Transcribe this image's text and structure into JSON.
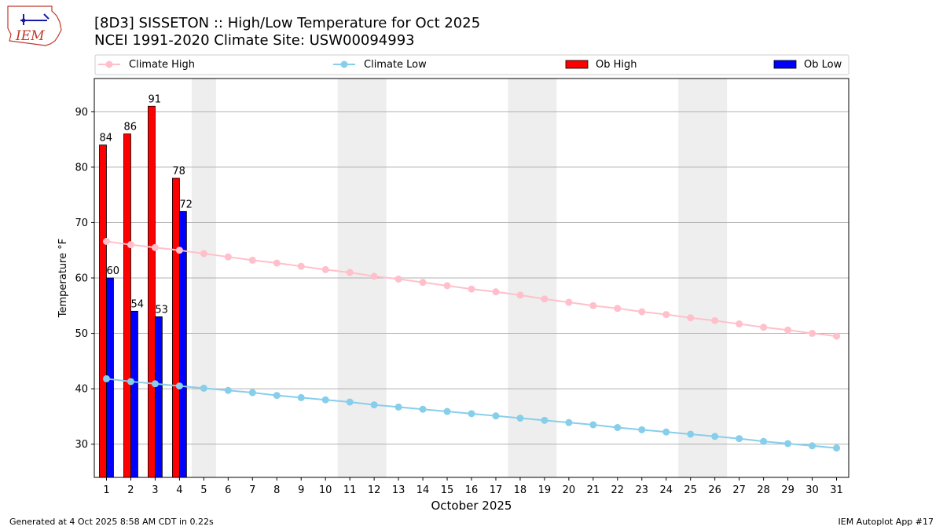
{
  "header": {
    "title_line1": "[8D3] SISSETON :: High/Low Temperature for Oct 2025",
    "title_line2": "NCEI 1991-2020 Climate Site: USW00094993"
  },
  "logo": {
    "text": "IEM",
    "colors": {
      "outline": "#c0392b",
      "text": "#c0392b",
      "symbol": "#1a1aaa"
    }
  },
  "footer": {
    "left": "Generated at 4 Oct 2025 8:58 AM CDT in 0.22s",
    "right": "IEM Autoplot App #17"
  },
  "chart_data": {
    "type": "bar",
    "title": "[8D3] SISSETON :: High/Low Temperature for Oct 2025",
    "subtitle": "NCEI 1991-2020 Climate Site: USW00094993",
    "xlabel": "October 2025",
    "ylabel": "Temperature °F",
    "ylim": [
      24,
      96
    ],
    "xlim": [
      0.5,
      31.5
    ],
    "yticks": [
      30,
      40,
      50,
      60,
      70,
      80,
      90
    ],
    "x": [
      1,
      2,
      3,
      4,
      5,
      6,
      7,
      8,
      9,
      10,
      11,
      12,
      13,
      14,
      15,
      16,
      17,
      18,
      19,
      20,
      21,
      22,
      23,
      24,
      25,
      26,
      27,
      28,
      29,
      30,
      31
    ],
    "grid": "y",
    "legend_position": "top",
    "weekend_shading": [
      [
        4.5,
        5.5
      ],
      [
        10.5,
        12.5
      ],
      [
        17.5,
        19.5
      ],
      [
        24.5,
        26.5
      ]
    ],
    "series": [
      {
        "name": "Climate High",
        "kind": "line",
        "color": "#ffc0cb",
        "values": [
          66.6,
          66.0,
          65.5,
          65.0,
          64.4,
          63.8,
          63.2,
          62.7,
          62.1,
          61.5,
          61.0,
          60.3,
          59.8,
          59.2,
          58.6,
          58.0,
          57.5,
          56.9,
          56.2,
          55.6,
          55.0,
          54.5,
          53.9,
          53.4,
          52.8,
          52.3,
          51.7,
          51.1,
          50.6,
          50.0,
          49.5
        ]
      },
      {
        "name": "Climate Low",
        "kind": "line",
        "color": "#87ceeb",
        "values": [
          41.8,
          41.3,
          40.9,
          40.5,
          40.1,
          39.7,
          39.3,
          38.8,
          38.4,
          38.0,
          37.6,
          37.1,
          36.7,
          36.3,
          35.9,
          35.5,
          35.1,
          34.7,
          34.3,
          33.9,
          33.5,
          33.0,
          32.6,
          32.2,
          31.8,
          31.4,
          31.0,
          30.5,
          30.1,
          29.7,
          29.3
        ]
      },
      {
        "name": "Ob High",
        "kind": "bar",
        "color": "#ff0000",
        "x": [
          1,
          2,
          3,
          4
        ],
        "values": [
          84,
          86,
          91,
          78
        ]
      },
      {
        "name": "Ob Low",
        "kind": "bar",
        "color": "#0000ff",
        "x": [
          1,
          2,
          3,
          4
        ],
        "values": [
          60,
          54,
          53,
          72
        ]
      }
    ]
  }
}
